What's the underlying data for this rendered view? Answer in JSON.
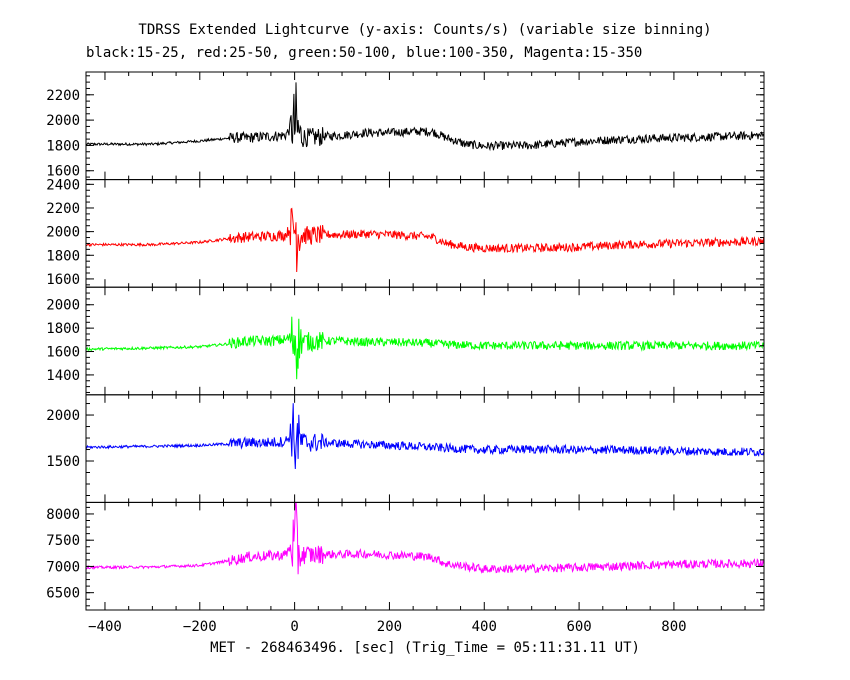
{
  "chart_data": {
    "type": "line",
    "title": "TDRSS Extended Lightcurve (y-axis: Counts/s) (variable size binning)",
    "subtitle": "black:15-25, red:25-50, green:50-100, blue:100-350, Magenta:15-350",
    "xlabel": "MET - 268463496. [sec] (Trig_Time = 05:11:31.11 UT)",
    "xlim": [
      -440,
      990
    ],
    "xticks": [
      -400,
      -200,
      0,
      200,
      400,
      600,
      800
    ],
    "grid": false,
    "panels": [
      {
        "band": "15-25",
        "color": "#000000",
        "ylim": [
          1530,
          2380
        ],
        "yticks": [
          1600,
          1800,
          2000,
          2200
        ],
        "series": {
          "x": [
            -440,
            -300,
            -200,
            -130,
            -100,
            -60,
            -20,
            -5,
            0,
            5,
            15,
            30,
            60,
            100,
            150,
            200,
            250,
            290,
            320,
            360,
            400,
            500,
            600,
            700,
            800,
            900,
            990
          ],
          "y": [
            1810,
            1810,
            1835,
            1860,
            1860,
            1870,
            1880,
            1950,
            1950,
            1920,
            1870,
            1860,
            1870,
            1880,
            1900,
            1900,
            1910,
            1910,
            1860,
            1810,
            1795,
            1800,
            1830,
            1850,
            1860,
            1870,
            1880
          ]
        }
      },
      {
        "band": "25-50",
        "color": "#ff0000",
        "ylim": [
          1530,
          2440
        ],
        "yticks": [
          1600,
          1800,
          2000,
          2200,
          2400
        ],
        "series": {
          "x": [
            -440,
            -300,
            -200,
            -130,
            -100,
            -60,
            -20,
            -5,
            0,
            5,
            15,
            30,
            60,
            100,
            150,
            200,
            250,
            290,
            320,
            360,
            400,
            500,
            600,
            700,
            800,
            900,
            990
          ],
          "y": [
            1890,
            1890,
            1910,
            1945,
            1955,
            1960,
            1970,
            2050,
            2050,
            2000,
            1975,
            1965,
            1975,
            1975,
            1980,
            1975,
            1965,
            1955,
            1900,
            1870,
            1860,
            1860,
            1870,
            1890,
            1900,
            1910,
            1920
          ]
        }
      },
      {
        "band": "50-100",
        "color": "#00ff00",
        "ylim": [
          1230,
          2150
        ],
        "yticks": [
          1400,
          1600,
          1800,
          2000
        ],
        "series": {
          "x": [
            -440,
            -300,
            -200,
            -130,
            -100,
            -60,
            -20,
            -5,
            0,
            5,
            15,
            30,
            60,
            100,
            150,
            200,
            250,
            290,
            320,
            360,
            400,
            500,
            600,
            700,
            800,
            900,
            990
          ],
          "y": [
            1620,
            1630,
            1640,
            1670,
            1690,
            1690,
            1700,
            1730,
            1730,
            1700,
            1690,
            1685,
            1690,
            1690,
            1680,
            1680,
            1675,
            1670,
            1660,
            1655,
            1650,
            1650,
            1650,
            1650,
            1650,
            1650,
            1650
          ]
        }
      },
      {
        "band": "100-350",
        "color": "#0000ff",
        "ylim": [
          1050,
          2220
        ],
        "yticks": [
          1500,
          2000
        ],
        "series": {
          "x": [
            -440,
            -300,
            -200,
            -130,
            -100,
            -60,
            -20,
            -5,
            0,
            5,
            15,
            30,
            60,
            100,
            150,
            200,
            250,
            290,
            320,
            360,
            400,
            500,
            600,
            700,
            800,
            900,
            990
          ],
          "y": [
            1650,
            1660,
            1670,
            1690,
            1700,
            1700,
            1710,
            1800,
            1800,
            1740,
            1710,
            1700,
            1700,
            1690,
            1680,
            1670,
            1660,
            1650,
            1640,
            1630,
            1620,
            1630,
            1620,
            1620,
            1610,
            1600,
            1600
          ]
        }
      },
      {
        "band": "15-350",
        "color": "#ff00ff",
        "ylim": [
          6170,
          8220
        ],
        "yticks": [
          6500,
          7000,
          7500,
          8000
        ],
        "series": {
          "x": [
            -440,
            -300,
            -200,
            -130,
            -100,
            -60,
            -20,
            -5,
            0,
            5,
            15,
            30,
            60,
            100,
            150,
            200,
            250,
            290,
            320,
            360,
            400,
            500,
            600,
            700,
            800,
            900,
            990
          ],
          "y": [
            6980,
            6990,
            7020,
            7120,
            7180,
            7200,
            7220,
            7400,
            7400,
            7300,
            7230,
            7220,
            7230,
            7230,
            7240,
            7220,
            7200,
            7180,
            7050,
            7000,
            6950,
            6960,
            6980,
            7010,
            7040,
            7050,
            7060
          ]
        }
      }
    ]
  }
}
